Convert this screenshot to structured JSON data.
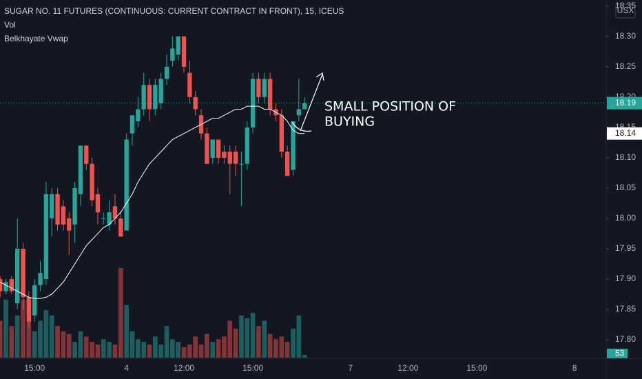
{
  "chart_data": {
    "type": "candlestick",
    "title": "SUGAR NO. 11 FUTURES (CONTINUOUS: CURRENT CONTRACT IN FRONT), 15, ICEUS",
    "volume_title": "Vol",
    "indicator_title": "Belkhayate Vwap",
    "currency": "USX",
    "annotation": [
      "SMALL POSITION OF",
      "BUYING"
    ],
    "up_color": "#26a69a",
    "down_color": "#ef5350",
    "vwap_color": "#ffffff",
    "grid": false,
    "ylim": [
      17.7705,
      18.36
    ],
    "yticks": [
      {
        "value": 17.8,
        "label": "17.80"
      },
      17.85,
      {
        "value": 17.9,
        "label": "17.90"
      },
      17.95,
      {
        "value": 18,
        "label": "18.00"
      },
      18.05,
      {
        "value": 18.1,
        "label": "18.10"
      },
      18.15,
      {
        "value": 18.2,
        "label": "18.20"
      },
      18.25,
      {
        "value": 18.3,
        "label": "18.30"
      },
      18.35
    ],
    "categories": [
      null,
      null,
      null,
      null,
      null,
      null,
      "15:00",
      null,
      null,
      null,
      null,
      null,
      null,
      null,
      null,
      null,
      null,
      null,
      null,
      null,
      null,
      null,
      "4",
      null,
      null,
      null,
      null,
      null,
      null,
      null,
      null,
      null,
      "12:00",
      null,
      null,
      null,
      null,
      null,
      null,
      null,
      null,
      null,
      null,
      null,
      "15:00",
      null,
      null,
      null,
      null,
      null,
      null,
      null,
      null,
      null,
      null,
      null,
      null,
      null,
      null,
      null,
      null,
      "7",
      null,
      null,
      null,
      null,
      null,
      null,
      null,
      null,
      null,
      "12:00",
      null,
      null,
      null,
      null,
      null,
      null,
      null,
      null,
      null,
      null,
      null,
      "15:00",
      null,
      null,
      null,
      null,
      null,
      null,
      null,
      null,
      null,
      null,
      null,
      null,
      null,
      null,
      null,
      null,
      "8",
      null,
      null,
      null,
      null,
      null
    ],
    "open": [
      17.9,
      17.88,
      17.9,
      17.86,
      17.95,
      17.87,
      17.84,
      17.89,
      17.9,
      18.0,
      18.04,
      18.02,
      18.0,
      17.99,
      18.04,
      18.12,
      18.09,
      18.04,
      18.0,
      17.99,
      18.02,
      18.0,
      17.98,
      18.14,
      18.16,
      18.18,
      18.22,
      18.18,
      18.19,
      18.23,
      18.26,
      18.27,
      18.3,
      18.24,
      18.2,
      18.17,
      18.14,
      18.1,
      18.13,
      18.11,
      18.11,
      18.11,
      18.09,
      18.09,
      18.15,
      18.23,
      18.2,
      18.23,
      18.18,
      18.17,
      18.11,
      18.08,
      18.17,
      18.18,
      null,
      null,
      null,
      null,
      null,
      null,
      null,
      null,
      null,
      null,
      null,
      null,
      null,
      null,
      null,
      null,
      null,
      null,
      null,
      null,
      null,
      null,
      null,
      null,
      null,
      null,
      null,
      null,
      null,
      null,
      null,
      null,
      null,
      null,
      null,
      null,
      null,
      null,
      null,
      null,
      null,
      null,
      null,
      null,
      null,
      null,
      null,
      null,
      null,
      null,
      null,
      null
    ],
    "high": [
      17.905,
      17.9,
      17.905,
      18.0,
      17.96,
      17.88,
      17.9,
      17.93,
      18.06,
      18.05,
      18.05,
      18.03,
      18.01,
      18.06,
      18.12,
      18.12,
      18.1,
      18.05,
      18.01,
      18.03,
      18.04,
      18.01,
      18.14,
      18.17,
      18.2,
      18.24,
      18.23,
      18.23,
      18.24,
      18.27,
      18.3,
      18.3,
      18.3,
      18.26,
      18.21,
      18.18,
      18.15,
      18.13,
      18.13,
      18.12,
      18.12,
      18.12,
      18.11,
      18.16,
      18.24,
      18.24,
      18.24,
      18.24,
      18.19,
      18.18,
      18.12,
      18.16,
      18.23,
      18.2,
      null,
      null,
      null,
      null,
      null,
      null,
      null,
      null,
      null,
      null,
      null,
      null,
      null,
      null,
      null,
      null,
      null,
      null,
      null,
      null,
      null,
      null,
      null,
      null,
      null,
      null,
      null,
      null,
      null,
      null,
      null,
      null,
      null,
      null,
      null,
      null,
      null,
      null,
      null,
      null,
      null,
      null,
      null,
      null,
      null,
      null,
      null,
      null,
      null,
      null,
      null,
      null
    ],
    "low": [
      17.87,
      17.875,
      17.875,
      17.85,
      17.85,
      17.82,
      17.83,
      17.88,
      17.89,
      17.97,
      17.98,
      17.98,
      17.94,
      17.96,
      18.02,
      18.08,
      18.02,
      17.99,
      17.99,
      17.98,
      17.99,
      17.97,
      17.98,
      18.12,
      18.15,
      18.17,
      18.16,
      18.17,
      18.18,
      18.22,
      18.25,
      18.26,
      18.24,
      18.19,
      18.17,
      18.13,
      18.09,
      18.09,
      18.09,
      18.09,
      18.04,
      18.07,
      18.02,
      18.08,
      18.14,
      18.19,
      18.19,
      18.17,
      18.16,
      18.1,
      18.07,
      18.07,
      18.16,
      18.18,
      null,
      null,
      null,
      null,
      null,
      null,
      null,
      null,
      null,
      null,
      null,
      null,
      null,
      null,
      null,
      null,
      null,
      null,
      null,
      null,
      null,
      null,
      null,
      null,
      null,
      null,
      null,
      null,
      null,
      null,
      null,
      null,
      null,
      null,
      null,
      null,
      null,
      null,
      null,
      null,
      null,
      null,
      null,
      null,
      null,
      null,
      null,
      null,
      null,
      null,
      null,
      null
    ],
    "close": [
      17.88,
      17.895,
      17.88,
      17.95,
      17.87,
      17.83,
      17.89,
      17.91,
      18.04,
      18.04,
      17.99,
      17.99,
      17.98,
      18.05,
      18.12,
      18.09,
      18.03,
      18.01,
      18.0,
      18.01,
      18.0,
      17.97,
      18.13,
      18.17,
      18.18,
      18.22,
      18.18,
      18.22,
      18.23,
      18.25,
      18.28,
      18.3,
      18.25,
      18.2,
      18.18,
      18.14,
      18.09,
      18.13,
      18.1,
      18.1,
      18.09,
      18.09,
      18.09,
      18.15,
      18.23,
      18.2,
      18.23,
      18.18,
      18.17,
      18.11,
      18.07,
      18.16,
      18.18,
      18.19,
      null,
      null,
      null,
      null,
      null,
      null,
      null,
      null,
      null,
      null,
      null,
      null,
      null,
      null,
      null,
      null,
      null,
      null,
      null,
      null,
      null,
      null,
      null,
      null,
      null,
      null,
      null,
      null,
      null,
      null,
      null,
      null,
      null,
      null,
      null,
      null,
      null,
      null,
      null,
      null,
      null,
      null,
      null,
      null,
      null,
      null,
      null,
      null,
      null,
      null,
      null,
      null
    ],
    "volume": [
      700,
      1100,
      600,
      800,
      1100,
      1100,
      500,
      700,
      900,
      800,
      600,
      500,
      450,
      300,
      500,
      400,
      300,
      250,
      350,
      300,
      250,
      1700,
      1000,
      500,
      350,
      300,
      250,
      400,
      250,
      600,
      350,
      300,
      200,
      250,
      400,
      250,
      450,
      300,
      350,
      400,
      700,
      550,
      800,
      750,
      850,
      600,
      700,
      450,
      350,
      400,
      300,
      550,
      800,
      53,
      null,
      null,
      null,
      null,
      null,
      null,
      null,
      null,
      null,
      null,
      null,
      null,
      null,
      null,
      null,
      null,
      null,
      null,
      null,
      null,
      null,
      null,
      null,
      null,
      null,
      null,
      null,
      null,
      null,
      null,
      null,
      null,
      null,
      null,
      null,
      null,
      null,
      null,
      null,
      null,
      null,
      null,
      null,
      null,
      null,
      null,
      null,
      null,
      null,
      null,
      null,
      null
    ],
    "vwap": [
      17.895,
      17.89,
      17.885,
      17.88,
      17.875,
      17.87,
      17.868,
      17.868,
      17.87,
      17.875,
      17.885,
      17.895,
      17.91,
      17.925,
      17.94,
      17.955,
      17.965,
      17.975,
      17.985,
      17.99,
      18.0,
      18.01,
      18.025,
      18.04,
      18.06,
      18.075,
      18.09,
      18.1,
      18.11,
      18.12,
      18.13,
      18.135,
      18.14,
      18.145,
      18.15,
      18.155,
      18.16,
      18.165,
      18.165,
      18.17,
      18.175,
      18.18,
      18.18,
      18.185,
      18.185,
      18.185,
      18.18,
      18.18,
      18.175,
      18.17,
      18.16,
      18.145,
      18.14,
      18.14,
      null,
      null,
      null,
      null,
      null,
      null,
      null,
      null,
      null,
      null,
      null,
      null,
      null,
      null,
      null,
      null,
      null,
      null,
      null,
      null,
      null,
      null,
      null,
      null,
      null,
      null,
      null,
      null,
      null,
      null,
      null,
      null,
      null,
      null,
      null,
      null,
      null,
      null,
      null,
      null,
      null,
      null,
      null,
      null,
      null,
      null,
      null,
      null,
      null,
      null,
      null,
      null
    ]
  }
}
